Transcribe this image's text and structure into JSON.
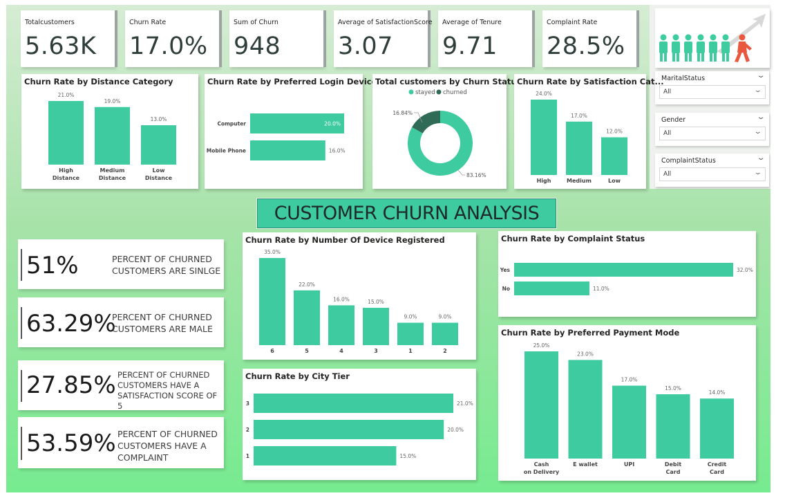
{
  "kpis": {
    "total_customers": {
      "label": "Totalcustomers",
      "value": "5.63K"
    },
    "churn_rate": {
      "label": "Churn Rate",
      "value": "17.0%"
    },
    "sum_of_churn": {
      "label": "Sum of Churn",
      "value": "948"
    },
    "avg_satisfaction": {
      "label": "Average of SatisfactionScore",
      "value": "3.07"
    },
    "avg_tenure": {
      "label": "Average of Tenure",
      "value": "9.71"
    },
    "complaint_rate": {
      "label": "Complaint Rate",
      "value": "28.5%"
    }
  },
  "colors": {
    "bar": "#3ecba0",
    "donut_churned": "#2f6b56",
    "banner": "#3ecba0",
    "logo_people": "#3ecba0",
    "logo_red": "#e9573f"
  },
  "slicers": [
    {
      "label": "MaritalStatus",
      "value": "All"
    },
    {
      "label": "Gender",
      "value": "All"
    },
    {
      "label": "ComplaintStatus",
      "value": "All"
    }
  ],
  "banner": {
    "title": "CUSTOMER CHURN ANALYSIS"
  },
  "stats": [
    {
      "value": "51%",
      "desc": "PERCENT OF CHURNED\nCUSTOMERS ARE SINLGE"
    },
    {
      "value": "63.29%",
      "desc": "PERCENT OF CHURNED\nCUSTOMERS ARE MALE"
    },
    {
      "value": "27.85%",
      "desc": "PERCENT OF CHURNED\nCUSTOMERS HAVE A\nSATISFACTION SCORE OF 5"
    },
    {
      "value": "53.59%",
      "desc": "PERCENT OF CHURNED\nCUSTOMERS HAVE A\nCOMPLAINT"
    }
  ],
  "chart_data": [
    {
      "id": "distance",
      "type": "bar",
      "title": "Churn Rate by Distance Category",
      "categories": [
        "High Distance",
        "Medium Distance",
        "Low Distance"
      ],
      "values": [
        21.0,
        19.0,
        13.0
      ],
      "labels": [
        "21.0%",
        "19.0%",
        "13.0%"
      ],
      "ylim": [
        0,
        21
      ]
    },
    {
      "id": "login",
      "type": "bar",
      "orientation": "horizontal",
      "title": "Churn Rate by Preferred Login Device",
      "categories": [
        "Computer",
        "Mobile Phone"
      ],
      "values": [
        20.0,
        16.0
      ],
      "labels": [
        "20.0%",
        "16.0%"
      ],
      "xlim": [
        0,
        20
      ]
    },
    {
      "id": "status",
      "type": "pie",
      "title": "Total customers by Churn Status",
      "legend": [
        "stayed",
        "churned"
      ],
      "series": [
        {
          "name": "stayed",
          "value": 83.16,
          "label": "83.16%"
        },
        {
          "name": "churned",
          "value": 16.84,
          "label": "16.84%"
        }
      ]
    },
    {
      "id": "satisfaction",
      "type": "bar",
      "title": "Churn Rate by Satisfaction Cat...",
      "categories": [
        "High",
        "Medium",
        "Low"
      ],
      "values": [
        24.0,
        17.0,
        12.0
      ],
      "labels": [
        "24.0%",
        "17.0%",
        "12.0%"
      ],
      "ylim": [
        0,
        24
      ]
    },
    {
      "id": "devices",
      "type": "bar",
      "title": "Churn Rate by Number Of Device Registered",
      "categories": [
        "6",
        "5",
        "4",
        "3",
        "1",
        "2"
      ],
      "values": [
        35.0,
        22.0,
        16.0,
        15.0,
        9.0,
        9.0
      ],
      "labels": [
        "35.0%",
        "22.0%",
        "16.0%",
        "15.0%",
        "9.0%",
        "9.0%"
      ],
      "ylim": [
        0,
        35
      ]
    },
    {
      "id": "complaint",
      "type": "bar",
      "orientation": "horizontal",
      "title": "Churn Rate by Complaint Status",
      "categories": [
        "Yes",
        "No"
      ],
      "values": [
        32.0,
        11.0
      ],
      "labels": [
        "32.0%",
        "11.0%"
      ],
      "xlim": [
        0,
        32
      ]
    },
    {
      "id": "citytier",
      "type": "bar",
      "orientation": "horizontal",
      "title": "Churn Rate by City Tier",
      "categories": [
        "3",
        "2",
        "1"
      ],
      "values": [
        21.0,
        20.0,
        15.0
      ],
      "labels": [
        "21.0%",
        "20.0%",
        "15.0%"
      ],
      "xlim": [
        0,
        21
      ]
    },
    {
      "id": "payment",
      "type": "bar",
      "title": "Churn Rate by Preferred Payment Mode",
      "categories": [
        "Cash on Delivery",
        "E wallet",
        "UPI",
        "Debit Card",
        "Credit Card"
      ],
      "values": [
        25.0,
        23.0,
        17.0,
        15.0,
        14.0
      ],
      "labels": [
        "25.0%",
        "23.0%",
        "17.0%",
        "15.0%",
        "14.0%"
      ],
      "ylim": [
        0,
        25
      ]
    }
  ]
}
